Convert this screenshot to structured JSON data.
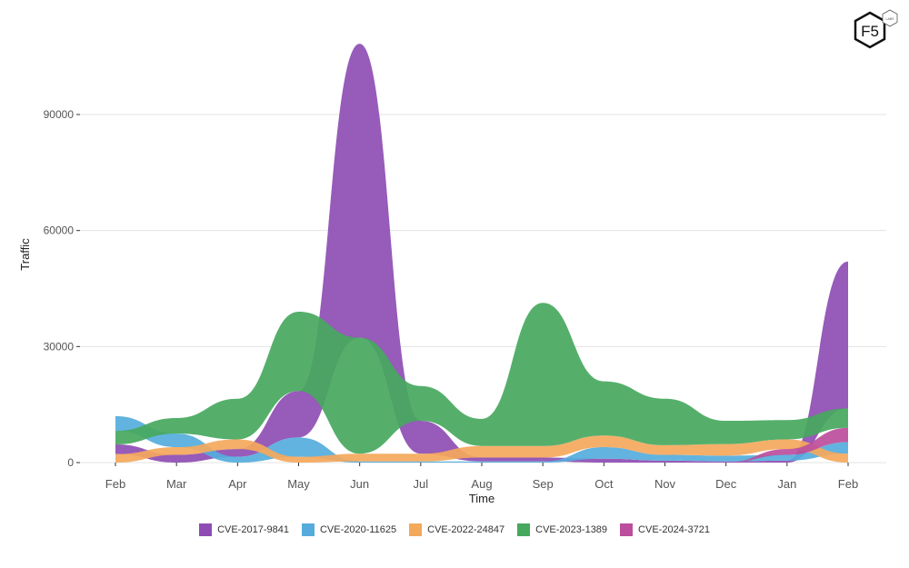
{
  "chart_data": {
    "type": "area",
    "subtype": "ranked-stacked-area",
    "xlabel": "Time",
    "ylabel": "Traffic",
    "ylim": [
      0,
      95000
    ],
    "yticks": [
      0,
      30000,
      60000,
      90000
    ],
    "ytick_labels": [
      "0",
      "30000",
      "60000",
      "90000"
    ],
    "categories": [
      "Feb",
      "Mar",
      "Apr",
      "May",
      "Jun",
      "Jul",
      "Aug",
      "Sep",
      "Oct",
      "Nov",
      "Dec",
      "Jan",
      "Feb"
    ],
    "grid": true,
    "legend_position": "bottom",
    "series": [
      {
        "name": "CVE-2017-9841",
        "color": "#8e4db3",
        "values": [
          2500,
          2000,
          2000,
          12000,
          76000,
          8500,
          1000,
          1000,
          1000,
          500,
          300,
          500,
          38000
        ]
      },
      {
        "name": "CVE-2020-11625",
        "color": "#55acdc",
        "values": [
          3800,
          3500,
          1500,
          5000,
          300,
          300,
          300,
          300,
          3000,
          1500,
          1500,
          1500,
          3000
        ]
      },
      {
        "name": "CVE-2022-24847",
        "color": "#f4a85c",
        "values": [
          2200,
          2000,
          2500,
          1500,
          2000,
          2000,
          3000,
          3000,
          3000,
          2500,
          3000,
          2500,
          2300
        ]
      },
      {
        "name": "CVE-2023-1389",
        "color": "#46a85e",
        "values": [
          3500,
          4000,
          10500,
          20500,
          30000,
          9000,
          7000,
          37000,
          14000,
          12000,
          6000,
          5000,
          5000
        ]
      },
      {
        "name": "CVE-2024-3721",
        "color": "#bc4e9c",
        "values": [
          0,
          0,
          0,
          0,
          0,
          0,
          0,
          0,
          0,
          0,
          0,
          1500,
          3700
        ]
      }
    ]
  },
  "logo": {
    "text": "F5",
    "badge": "LABS"
  }
}
